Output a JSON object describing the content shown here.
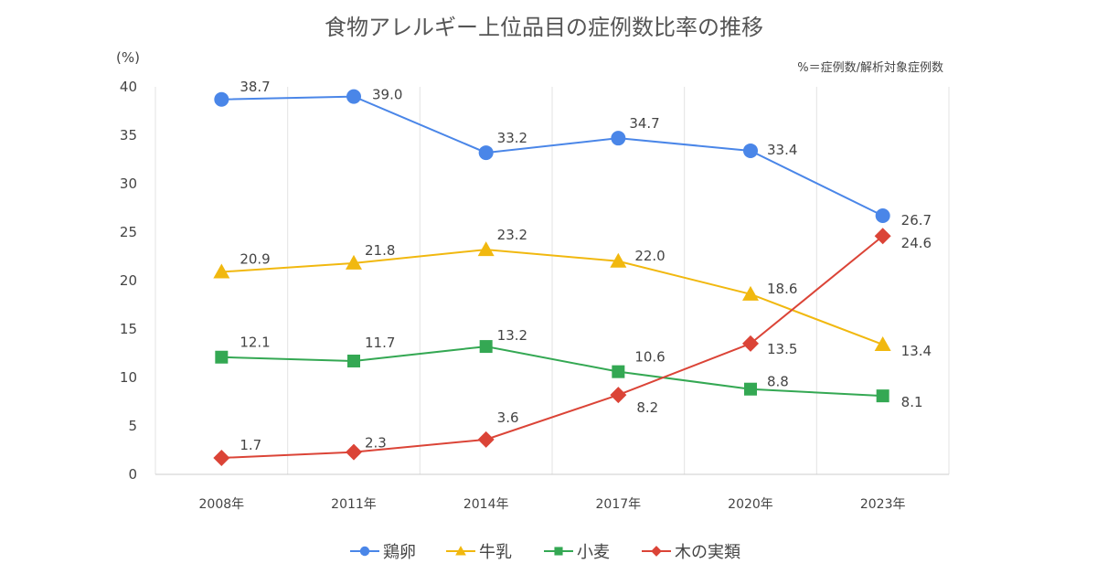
{
  "chart_data": {
    "type": "line",
    "title": "食物アレルギー上位品目の症例数比率の推移",
    "note": "%＝症例数/解析対象症例数",
    "ylabel": "(%)",
    "xlabel": "",
    "categories": [
      "2008年",
      "2011年",
      "2014年",
      "2017年",
      "2020年",
      "2023年"
    ],
    "ylim": [
      0,
      40
    ],
    "yticks": [
      0,
      5,
      10,
      15,
      20,
      25,
      30,
      35,
      40
    ],
    "grid": "vertical",
    "legend_position": "bottom",
    "series": [
      {
        "name": "鶏卵",
        "marker": "circle",
        "color": "#4a86e8",
        "values": [
          38.7,
          39.0,
          33.2,
          34.7,
          33.4,
          26.7
        ]
      },
      {
        "name": "牛乳",
        "marker": "triangle",
        "color": "#f1b80f",
        "values": [
          20.9,
          21.8,
          23.2,
          22.0,
          18.6,
          13.4
        ]
      },
      {
        "name": "小麦",
        "marker": "square",
        "color": "#34a853",
        "values": [
          12.1,
          11.7,
          13.2,
          10.6,
          8.8,
          8.1
        ]
      },
      {
        "name": "木の実類",
        "marker": "diamond",
        "color": "#db4437",
        "values": [
          1.7,
          2.3,
          3.6,
          8.2,
          13.5,
          24.6
        ]
      }
    ]
  }
}
